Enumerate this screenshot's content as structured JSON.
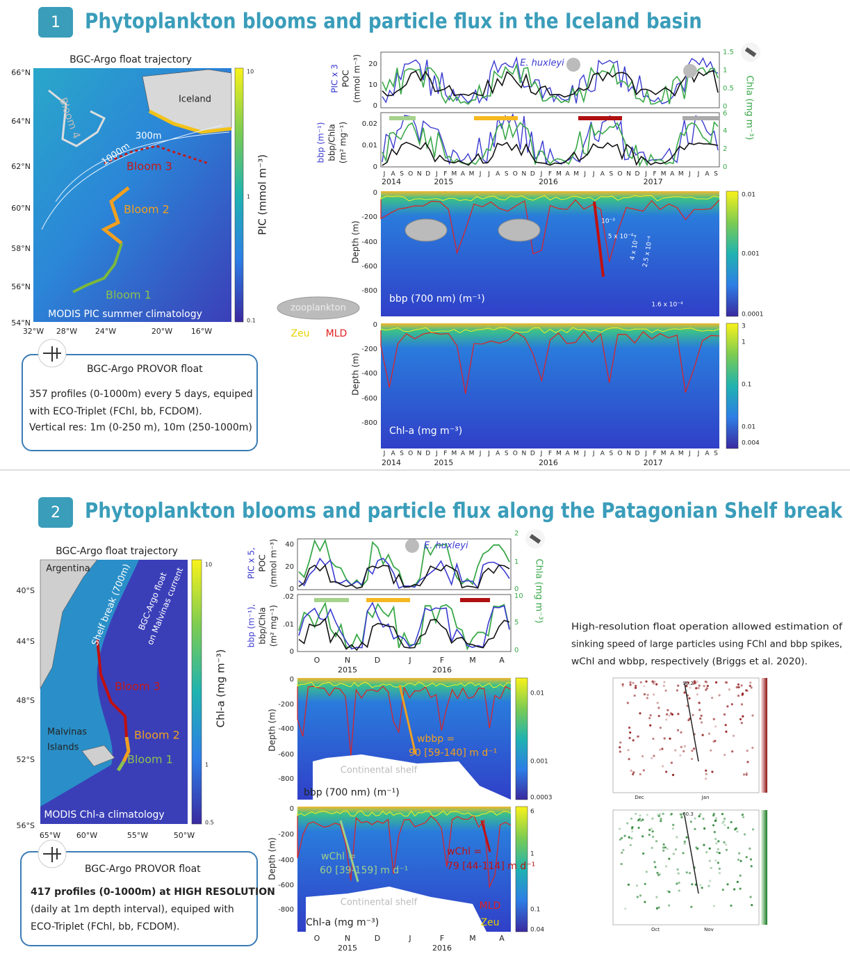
{
  "sections": [
    {
      "number": "1",
      "title": "Phytoplankton blooms and particle flux in the Iceland basin",
      "map": {
        "title": "BGC-Argo float trajectory",
        "lat_ticks": [
          "66°N",
          "64°N",
          "62°N",
          "60°N",
          "58°N",
          "56°N",
          "54°N"
        ],
        "lon_ticks": [
          "32°W",
          "28°W",
          "24°W",
          "20°W",
          "16°W"
        ],
        "colorbar_ticks": [
          "10",
          "1",
          "0.1"
        ],
        "colorbar_label": "PIC (mmol m⁻³)",
        "labels": {
          "iceland": "Iceland",
          "isobath_300": "300m",
          "isobath_1000": "1000m",
          "bloom_4": "Bloom 4",
          "bloom_3": "Bloom 3",
          "bloom_2": "Bloom 2",
          "bloom_1": "Bloom 1",
          "source": "MODIS PIC summer climatology"
        }
      },
      "float": {
        "title": "BGC-Argo PROVOR float",
        "lines": [
          "357 profiles (0-1000m) every 5 days, equiped",
          "with ECO-Triplet (FChl, bb, FCDOM).",
          "Vertical res: 1m (0-250 m), 10m (250-1000m)"
        ]
      },
      "legend": {
        "zooplankton": "zooplankton",
        "zeu": "Zeu",
        "mld": "MLD"
      },
      "timeseries": {
        "top": {
          "left_label": [
            "PIC x 3",
            "POC",
            "(mmol m⁻³)"
          ],
          "left_ticks": [
            "20",
            "10",
            "0"
          ],
          "right_label": "Chla (mg m⁻³)",
          "right_ticks": [
            "1.5",
            "1",
            "0.5",
            "0"
          ],
          "species": "E. huxleyi"
        },
        "bottom": {
          "left_label": [
            "bbp (m⁻¹)",
            "bbp/Chla",
            "(m² mg⁻¹)"
          ],
          "left_ticks": [
            "0.02",
            "0.01",
            "0"
          ],
          "right_ticks": [
            "6",
            "4",
            "2",
            "0"
          ]
        },
        "months": [
          "J",
          "A",
          "S",
          "O",
          "N",
          "D",
          "J",
          "F",
          "M",
          "A",
          "M",
          "J",
          "J",
          "A",
          "S",
          "O",
          "N",
          "D",
          "J",
          "F",
          "M",
          "A",
          "M",
          "J",
          "J",
          "A",
          "S",
          "O",
          "N",
          "D",
          "J",
          "F",
          "M",
          "A",
          "M",
          "J",
          "J",
          "A",
          "S"
        ],
        "years": [
          "2014",
          "2015",
          "2016",
          "2017"
        ]
      },
      "sections_plots": [
        {
          "depth_label": "Depth (m)",
          "depth_ticks": [
            "0",
            "-200",
            "-400",
            "-600",
            "-800"
          ],
          "colorbar_ticks": [
            "0.01",
            "0.001",
            "0.0001"
          ],
          "label": "bbp (700 nm) (m⁻¹)",
          "annotations": [
            "10⁻³",
            "5 x 10⁻⁴",
            "4 x 10⁻⁴",
            "2.5 x 10⁻⁴",
            "1.6 x 10⁻⁴"
          ]
        },
        {
          "depth_label": "Depth (m)",
          "depth_ticks": [
            "0",
            "-200",
            "-400",
            "-600",
            "-800"
          ],
          "colorbar_ticks": [
            "3",
            "1",
            "0.1",
            "0.01",
            "0.004"
          ],
          "label": "Chl-a (mg m⁻³)"
        }
      ]
    },
    {
      "number": "2",
      "title": "Phytoplankton blooms and particle flux along the Patagonian Shelf break",
      "map": {
        "title": "BGC-Argo float trajectory",
        "lat_ticks": [
          "40°S",
          "44°S",
          "48°S",
          "52°S",
          "56°S"
        ],
        "lon_ticks": [
          "65°W",
          "60°W",
          "55°W",
          "50°W"
        ],
        "colorbar_ticks": [
          "10",
          "1",
          "0.5"
        ],
        "colorbar_label": "Chl-a (mg m⁻³)",
        "labels": {
          "argentina": "Argentina",
          "shelf_break": "Shelf break (700m)",
          "float_1": "BGC-Argo float",
          "float_2": "on Malvinas current",
          "bloom_3": "Bloom 3",
          "malvinas": "Malvinas",
          "islands": "Islands",
          "bloom_2": "Bloom 2",
          "bloom_1": "Bloom 1",
          "source": "MODIS Chl-a climatology"
        }
      },
      "float": {
        "title": "BGC-Argo PROVOR float",
        "lines": [
          "417 profiles (0-1000m) at HIGH RESOLUTION",
          "(daily at 1m depth interval), equiped with",
          "ECO-Triplet (FChl, bb, FCDOM)."
        ]
      },
      "timeseries": {
        "top": {
          "left_label": [
            "PIC x 5,",
            "POC",
            "(mmol m⁻³)"
          ],
          "left_ticks": [
            "40",
            "20",
            "0"
          ],
          "right_label": "Chla (mg m⁻³)",
          "right_ticks": [
            "2",
            "1",
            "0"
          ],
          "species": "E. huxleyi"
        },
        "bottom": {
          "left_label": [
            "bbp (m⁻¹),",
            "bbp/Chla",
            "(m² mg⁻¹)"
          ],
          "left_ticks": [
            ".02",
            ".01",
            "0"
          ],
          "right_ticks": [
            "10",
            "5",
            "0"
          ]
        },
        "months": [
          "O",
          "N",
          "D",
          "J",
          "F",
          "M",
          "A"
        ],
        "years": [
          "2015",
          "2016"
        ]
      },
      "sections_plots": [
        {
          "depth_label": "Depth (m)",
          "depth_ticks": [
            "0",
            "-200",
            "-400",
            "-600",
            "-800"
          ],
          "colorbar_ticks": [
            "0.01",
            "0.001",
            "0.0003"
          ],
          "label": "bbp (700 nm) (m⁻¹)",
          "annotations": [
            "wbbp =",
            "90 [59-140] m d⁻¹",
            "Continental shelf"
          ]
        },
        {
          "depth_label": "Depth (m)",
          "depth_ticks": [
            "0",
            "-200",
            "-400",
            "-600",
            "-800"
          ],
          "colorbar_ticks": [
            "6",
            "1",
            "0.1",
            "0.04"
          ],
          "label": "Chl-a (mg m⁻³)",
          "annotations": [
            "wChl =",
            "60 [39-159] m d⁻¹",
            "wChl =",
            "79 [44-114] m d⁻¹",
            "Continental shelf",
            "MLD",
            "Zeu"
          ]
        }
      ],
      "note": [
        "High-resolution float operation allowed estimation of",
        "sinking speed of large particles using FChl and bbp spikes,",
        "wChl and wbbp, respectively (Briggs et al. 2020)."
      ],
      "small_figures": [
        {
          "peak": "90.2",
          "months": [
            "Dec",
            "Jan"
          ]
        },
        {
          "peak": "60.3",
          "months": [
            "Oct",
            "Nov"
          ]
        }
      ]
    }
  ]
}
